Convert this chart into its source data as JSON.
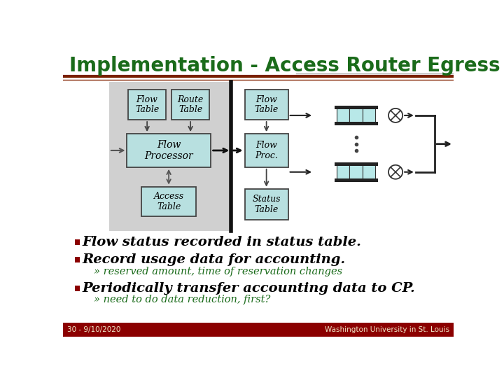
{
  "title": "Implementation - Access Router Egress",
  "title_color": "#1a6b1a",
  "title_fontsize": 20,
  "bg_color": "#ffffff",
  "header_line_color1": "#7a2000",
  "header_line_color2": "#8b3010",
  "footer_bg": "#8b0000",
  "footer_text_left": "30 - 9/10/2020",
  "footer_text_right": "Washington University in St. Louis",
  "footer_text_color": "#f0e8c8",
  "bullet_color": "#8b0000",
  "bullet_text_color": "#000000",
  "sub_bullet_color": "#1a6b1a",
  "diagram_bg": "#d0d0d0",
  "box_fill": "#b8e0e0",
  "box_edge": "#444444",
  "queue_fill": "#b8e8e8",
  "queue_edge": "#111111"
}
